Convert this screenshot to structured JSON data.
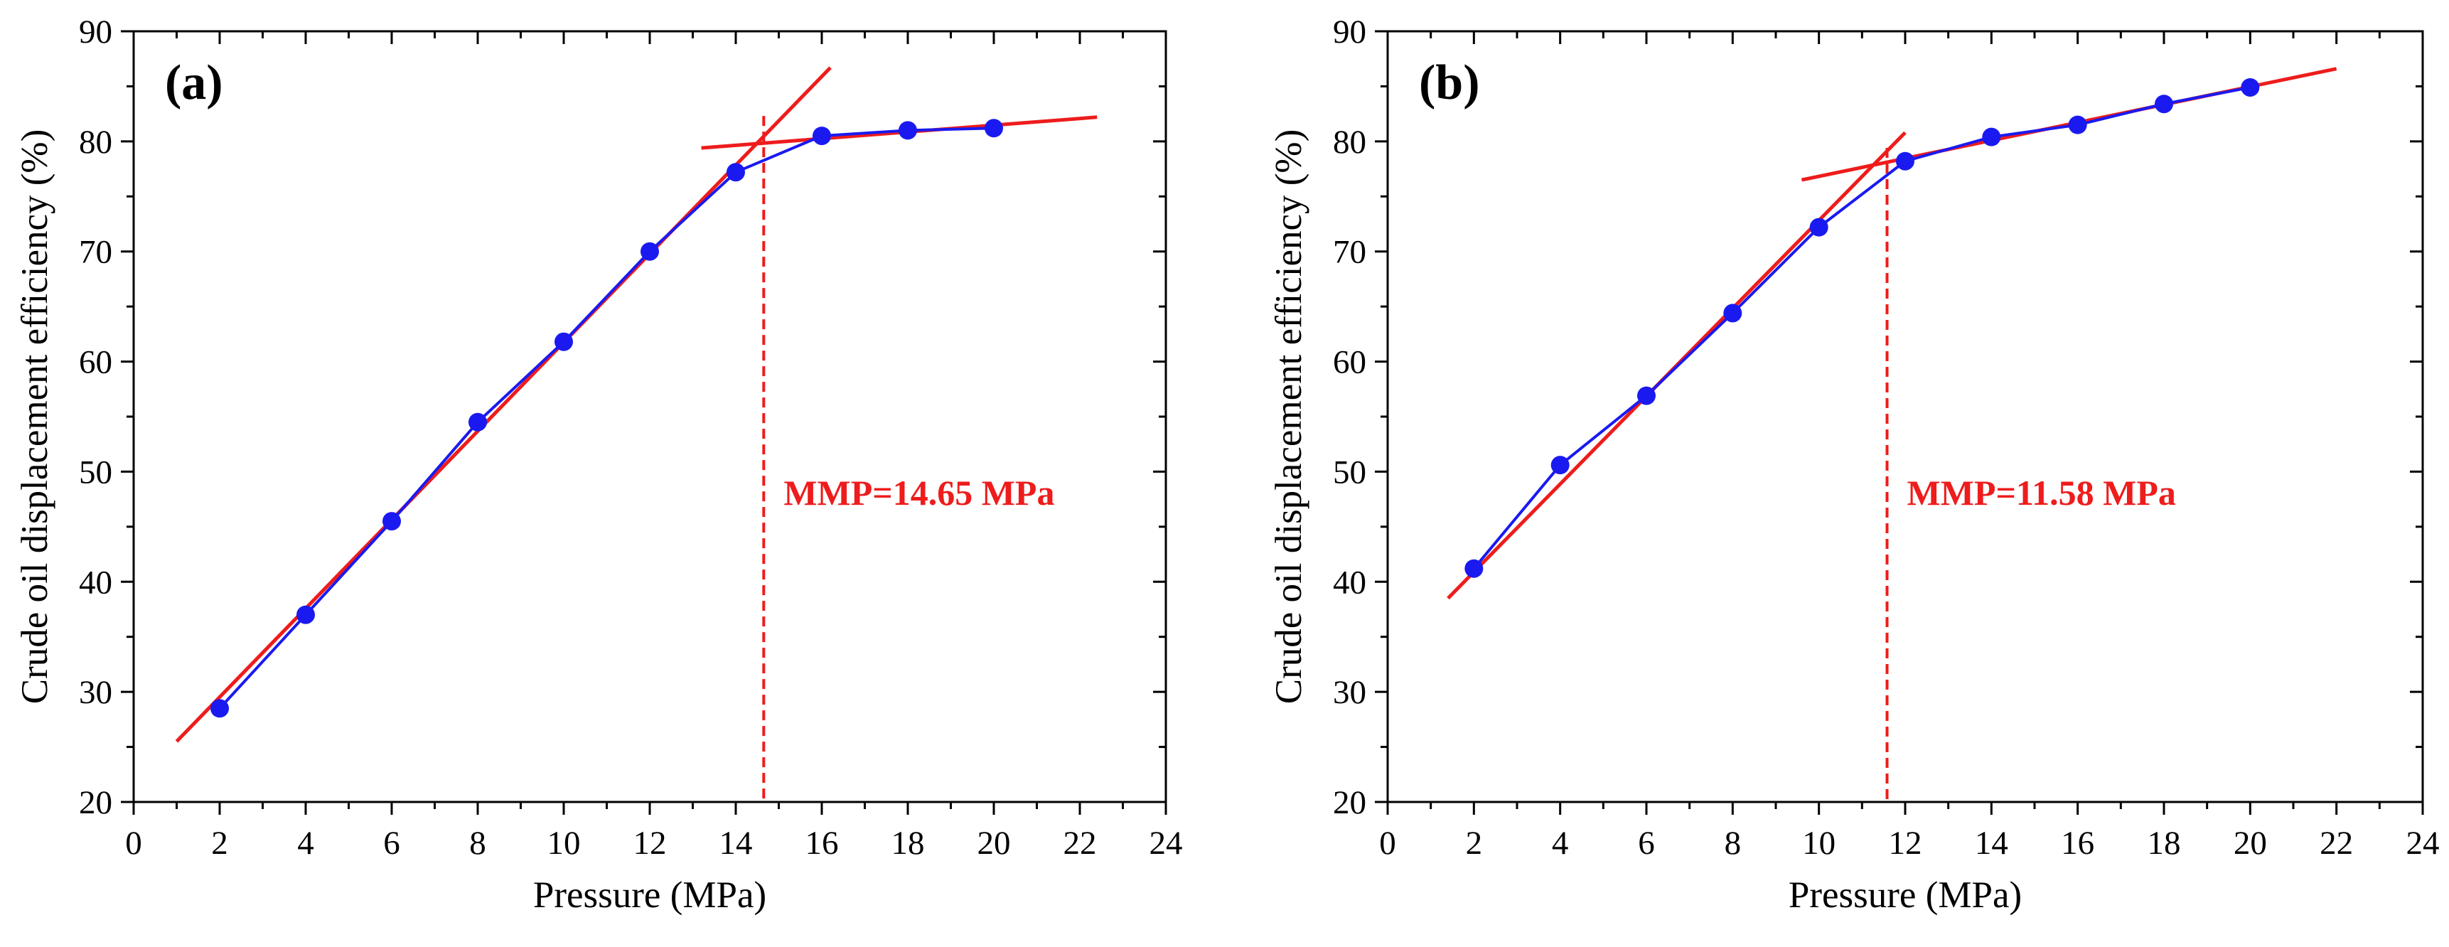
{
  "colors": {
    "data": "#1a1af0",
    "fit": "#ee1c1c",
    "axis": "#000000"
  },
  "chart_data": [
    {
      "type": "line",
      "panel_label": "(a)",
      "xlabel": "Pressure (MPa)",
      "ylabel": "Crude oil displacement efficiency (%)",
      "xlim": [
        0,
        24
      ],
      "ylim": [
        20,
        90
      ],
      "xticks": [
        "0",
        "2",
        "4",
        "6",
        "8",
        "10",
        "12",
        "14",
        "16",
        "18",
        "20",
        "22",
        "24"
      ],
      "yticks": [
        "20",
        "30",
        "40",
        "50",
        "60",
        "70",
        "80",
        "90"
      ],
      "grid": false,
      "series": [
        {
          "x": [
            2,
            4,
            6,
            8,
            10,
            12,
            14,
            16,
            18,
            20
          ],
          "y": [
            28.5,
            37.0,
            45.5,
            54.5,
            61.8,
            70.0,
            77.2,
            80.5,
            81.0,
            81.2
          ]
        }
      ],
      "fit_lines": [
        {
          "from": [
            1.0,
            25.5
          ],
          "to": [
            16.2,
            86.7
          ]
        },
        {
          "from": [
            13.2,
            79.4
          ],
          "to": [
            22.4,
            82.2
          ]
        }
      ],
      "mmp": {
        "x": 14.65,
        "label": "MMP=14.65 MPa"
      }
    },
    {
      "type": "line",
      "panel_label": "(b)",
      "xlabel": "Pressure (MPa)",
      "ylabel": "Crude oil displacement efficiency (%)",
      "xlim": [
        0,
        24
      ],
      "ylim": [
        20,
        90
      ],
      "xticks": [
        "0",
        "2",
        "4",
        "6",
        "8",
        "10",
        "12",
        "14",
        "16",
        "18",
        "20",
        "22",
        "24"
      ],
      "yticks": [
        "20",
        "30",
        "40",
        "50",
        "60",
        "70",
        "80",
        "90"
      ],
      "grid": false,
      "series": [
        {
          "x": [
            2,
            4,
            6,
            8,
            10,
            12,
            14,
            16,
            18,
            20
          ],
          "y": [
            41.2,
            50.6,
            56.9,
            64.4,
            72.2,
            78.2,
            80.4,
            81.5,
            83.4,
            84.9
          ]
        }
      ],
      "fit_lines": [
        {
          "from": [
            1.4,
            38.5
          ],
          "to": [
            12.0,
            80.8
          ]
        },
        {
          "from": [
            9.6,
            76.5
          ],
          "to": [
            22.0,
            86.6
          ]
        }
      ],
      "mmp": {
        "x": 11.58,
        "label": "MMP=11.58 MPa"
      }
    }
  ]
}
